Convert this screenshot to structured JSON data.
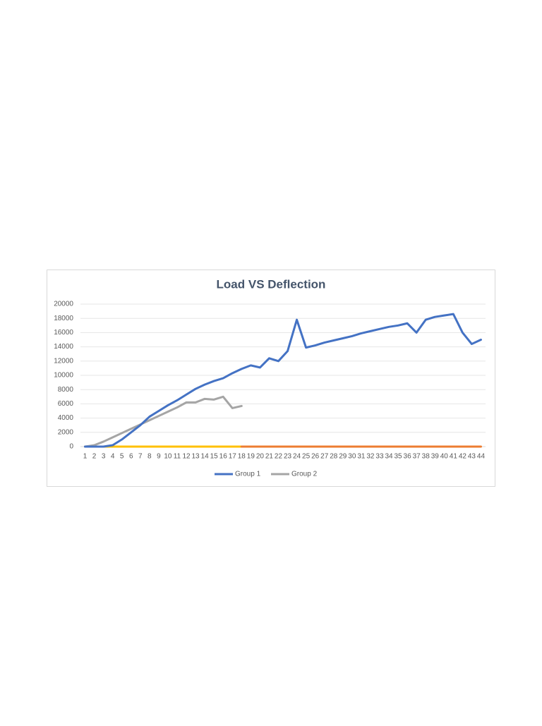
{
  "chart_data": {
    "type": "line",
    "title": "Load VS Deflection",
    "categories": [
      1,
      2,
      3,
      4,
      5,
      6,
      7,
      8,
      9,
      10,
      11,
      12,
      13,
      14,
      15,
      16,
      17,
      18,
      19,
      20,
      21,
      22,
      23,
      24,
      25,
      26,
      27,
      28,
      29,
      30,
      31,
      32,
      33,
      34,
      35,
      36,
      37,
      38,
      39,
      40,
      41,
      42,
      43,
      44
    ],
    "series": [
      {
        "name": "Group 1",
        "color": "#4472c4",
        "values": [
          0,
          0,
          0,
          200,
          1000,
          2000,
          3000,
          4200,
          5000,
          5800,
          6500,
          7300,
          8100,
          8700,
          9200,
          9600,
          10300,
          10900,
          11400,
          11100,
          12400,
          12000,
          13400,
          17800,
          13900,
          14200,
          14600,
          14900,
          15200,
          15500,
          15900,
          16200,
          16500,
          16800,
          17000,
          17300,
          16000,
          17800,
          18200,
          18400,
          18600,
          16000,
          14400,
          15000
        ]
      },
      {
        "name": "Group 2",
        "color": "#a5a5a5",
        "values": [
          0,
          200,
          700,
          1300,
          1900,
          2500,
          3100,
          3700,
          4300,
          4900,
          5500,
          6200,
          6200,
          6700,
          6600,
          7000,
          5400,
          5700,
          null,
          null,
          null,
          null,
          null,
          null,
          null,
          null,
          null,
          null,
          null,
          null,
          null,
          null,
          null,
          null,
          null,
          null,
          null,
          null,
          null,
          null,
          null,
          null,
          null,
          null
        ]
      },
      {
        "color": "#ed7d31",
        "values": [
          null,
          null,
          null,
          null,
          null,
          null,
          null,
          null,
          null,
          null,
          null,
          null,
          null,
          null,
          null,
          null,
          null,
          0,
          0,
          0,
          0,
          0,
          0,
          0,
          0,
          0,
          0,
          0,
          0,
          0,
          0,
          0,
          0,
          0,
          0,
          0,
          0,
          0,
          0,
          0,
          0,
          0,
          0,
          0
        ]
      },
      {
        "color": "#ffc000",
        "values": [
          0,
          0,
          0,
          0,
          0,
          0,
          0,
          0,
          0,
          0,
          0,
          0,
          0,
          0,
          0,
          0,
          0,
          0,
          null,
          null,
          null,
          null,
          null,
          null,
          null,
          null,
          null,
          null,
          null,
          null,
          null,
          null,
          null,
          null,
          null,
          null,
          null,
          null,
          null,
          null,
          null,
          null,
          null,
          null
        ]
      }
    ],
    "ylim": [
      0,
      20000
    ],
    "yticks": [
      0,
      2000,
      4000,
      6000,
      8000,
      10000,
      12000,
      14000,
      16000,
      18000,
      20000
    ],
    "grid": true,
    "legend": "bottom"
  }
}
